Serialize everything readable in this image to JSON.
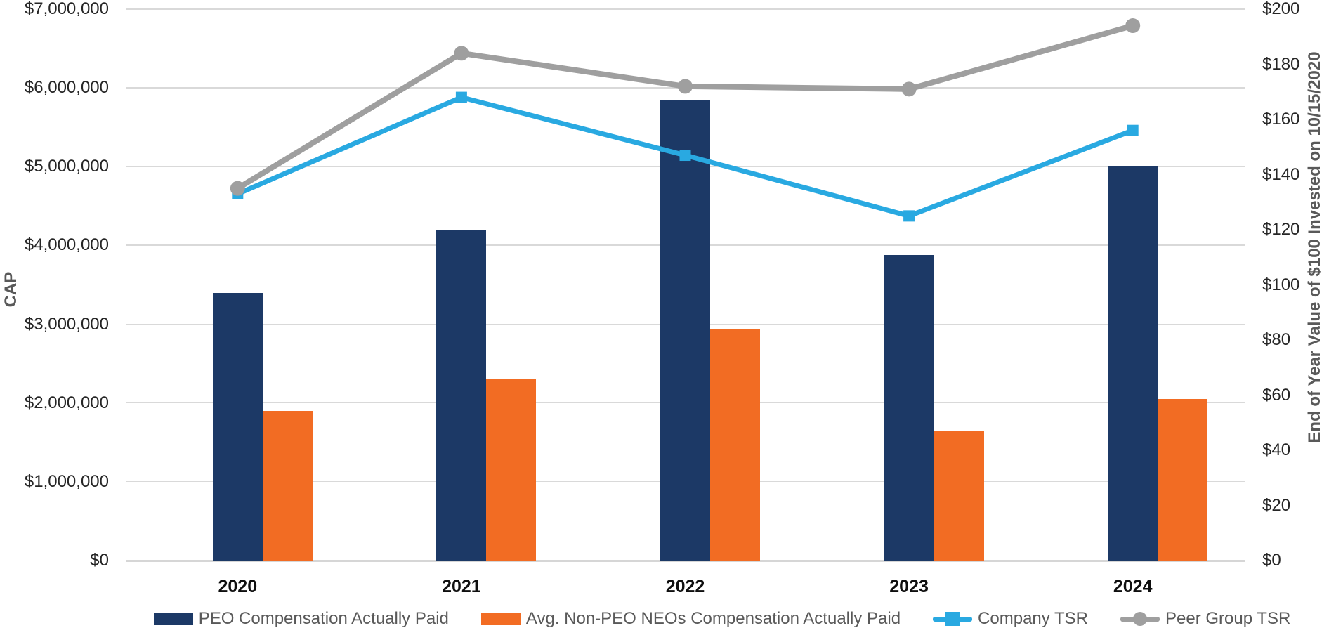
{
  "chart_data": {
    "type": "combo",
    "title": "",
    "categories": [
      "2020",
      "2021",
      "2022",
      "2023",
      "2024"
    ],
    "series": [
      {
        "name": "PEO Compensation Actually Paid",
        "type": "bar",
        "axis": "left",
        "color": "#1C3966",
        "values": [
          3400000,
          4190000,
          5850000,
          3880000,
          5010000
        ]
      },
      {
        "name": "Avg. Non-PEO NEOs Compensation Actually Paid",
        "type": "bar",
        "axis": "left",
        "color": "#F26C23",
        "values": [
          1900000,
          2310000,
          2930000,
          1650000,
          2050000
        ]
      },
      {
        "name": "Company TSR",
        "type": "line",
        "axis": "right",
        "color": "#29A9E1",
        "marker": "square",
        "values": [
          133,
          168,
          147,
          125,
          156
        ]
      },
      {
        "name": "Peer Group TSR",
        "type": "line",
        "axis": "right",
        "color": "#9F9F9F",
        "marker": "circle",
        "values": [
          135,
          184,
          172,
          171,
          194
        ]
      }
    ],
    "left_axis": {
      "title": "CAP",
      "min": 0,
      "max": 7000000,
      "step": 1000000,
      "ticks": [
        "$0",
        "$1,000,000",
        "$2,000,000",
        "$3,000,000",
        "$4,000,000",
        "$5,000,000",
        "$6,000,000",
        "$7,000,000"
      ]
    },
    "right_axis": {
      "title": "End of Year Value of $100 Invested on 10/15/2020",
      "min": 0,
      "max": 200,
      "step": 20,
      "ticks": [
        "$0",
        "$20",
        "$40",
        "$60",
        "$80",
        "$100",
        "$120",
        "$140",
        "$160",
        "$180",
        "$200"
      ]
    },
    "legend_position": "bottom",
    "grid": true,
    "colors": {
      "grid": "#D9D9D9",
      "tick_text": "#262626",
      "category_text": "#0F0F0F",
      "legend_text": "#595959",
      "axis_title_text": "#595959",
      "background": "#FFFFFF"
    }
  }
}
